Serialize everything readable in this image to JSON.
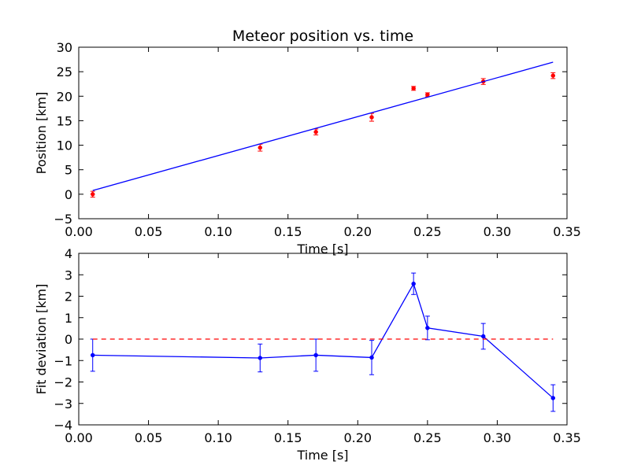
{
  "chart_data": [
    {
      "type": "scatter",
      "title": "Meteor position vs. time",
      "xlabel": "Time [s]",
      "ylabel": "Position [km]",
      "xlim": [
        0.0,
        0.35
      ],
      "ylim": [
        -5,
        30
      ],
      "xticks": [
        0.0,
        0.05,
        0.1,
        0.15,
        0.2,
        0.25,
        0.3,
        0.35
      ],
      "xtick_labels": [
        "0.00",
        "0.05",
        "0.10",
        "0.15",
        "0.20",
        "0.25",
        "0.30",
        "0.35"
      ],
      "yticks": [
        -5,
        0,
        5,
        10,
        15,
        20,
        25,
        30
      ],
      "ytick_labels": [
        "−5",
        "0",
        "5",
        "10",
        "15",
        "20",
        "25",
        "30"
      ],
      "grid": false,
      "series": [
        {
          "kind": "errorbar-markers",
          "color": "#ff0000",
          "x": [
            0.01,
            0.13,
            0.17,
            0.21,
            0.24,
            0.25,
            0.29,
            0.34
          ],
          "y": [
            0.0,
            9.5,
            12.7,
            15.7,
            21.6,
            20.3,
            23.0,
            24.2
          ],
          "yerr": [
            0.6,
            0.7,
            0.6,
            0.8,
            0.4,
            0.4,
            0.6,
            0.6
          ]
        },
        {
          "kind": "line",
          "color": "#0000ff",
          "x": [
            0.01,
            0.34
          ],
          "y": [
            0.75,
            26.95
          ]
        }
      ]
    },
    {
      "type": "line",
      "title": "",
      "xlabel": "Time [s]",
      "ylabel": "Fit deviation [km]",
      "xlim": [
        0.0,
        0.35
      ],
      "ylim": [
        -4,
        4
      ],
      "xticks": [
        0.0,
        0.05,
        0.1,
        0.15,
        0.2,
        0.25,
        0.3,
        0.35
      ],
      "xtick_labels": [
        "0.00",
        "0.05",
        "0.10",
        "0.15",
        "0.20",
        "0.25",
        "0.30",
        "0.35"
      ],
      "yticks": [
        -4,
        -3,
        -2,
        -1,
        0,
        1,
        2,
        3,
        4
      ],
      "ytick_labels": [
        "−4",
        "−3",
        "−2",
        "−1",
        "0",
        "1",
        "2",
        "3",
        "4"
      ],
      "grid": false,
      "series": [
        {
          "kind": "errorbar-line",
          "color": "#0000ff",
          "x": [
            0.01,
            0.13,
            0.17,
            0.21,
            0.24,
            0.25,
            0.29,
            0.34
          ],
          "y": [
            -0.75,
            -0.88,
            -0.75,
            -0.86,
            2.58,
            0.52,
            0.13,
            -2.75
          ],
          "yerr": [
            0.75,
            0.65,
            0.75,
            0.8,
            0.5,
            0.55,
            0.6,
            0.62
          ]
        },
        {
          "kind": "reference-line",
          "color": "#ff0000",
          "dashed": true,
          "x": [
            0.01,
            0.34
          ],
          "y": [
            0,
            0
          ]
        }
      ]
    }
  ]
}
